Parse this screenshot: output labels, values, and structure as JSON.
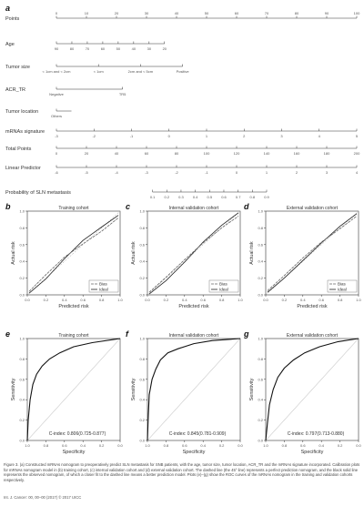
{
  "nomogram": {
    "panel_letter": "a",
    "rows": [
      {
        "label": "Points",
        "ticks": [
          "0",
          "10",
          "20",
          "30",
          "40",
          "50",
          "60",
          "70",
          "80",
          "90",
          "100"
        ]
      },
      {
        "label": "Age",
        "ticks": [
          "90",
          "80",
          "70",
          "60",
          "50",
          "40",
          "30",
          "20"
        ]
      },
      {
        "label": "Tumor size",
        "ticks": [
          "< 1cm and < 2cm",
          "< 1cm",
          "2cm and < 5cm",
          "Positive"
        ]
      },
      {
        "label": "ACR_TR",
        "ticks": [
          "Negative",
          "TR5"
        ]
      },
      {
        "label": "Tumor location",
        "ticks": [
          "Others"
        ]
      },
      {
        "label": "mRNAs signature",
        "ticks": [
          "-3",
          "-2",
          "-1",
          "0",
          "1",
          "2",
          "3",
          "4",
          "5"
        ]
      },
      {
        "label": "Total Points",
        "ticks": [
          "0",
          "20",
          "40",
          "60",
          "80",
          "100",
          "120",
          "140",
          "160",
          "180",
          "200"
        ]
      },
      {
        "label": "Linear Predictor",
        "ticks": [
          "-6",
          "-5",
          "-4",
          "-3",
          "-2",
          "-1",
          "0",
          "1",
          "2",
          "3",
          "4"
        ]
      },
      {
        "label": "Probability of SLN metastasis",
        "ticks": [
          "0.1",
          "0.2",
          "0.3",
          "0.4",
          "0.5",
          "0.6",
          "0.7",
          "0.8",
          "0.9"
        ]
      }
    ]
  },
  "calibration": [
    {
      "letter": "b",
      "title": "Training cohort",
      "xlabel": "Predicted risk",
      "ylabel": "Actual risk",
      "ticks": [
        "0.0",
        "0.2",
        "0.4",
        "0.6",
        "0.8",
        "1.0"
      ],
      "legend": [
        "Bias",
        "Ideal"
      ]
    },
    {
      "letter": "c",
      "title": "Internal validation cohort",
      "xlabel": "Predicted risk",
      "ylabel": "Actual risk",
      "ticks": [
        "0.0",
        "0.2",
        "0.4",
        "0.6",
        "0.8",
        "1.0"
      ],
      "legend": [
        "Bias",
        "Ideal"
      ]
    },
    {
      "letter": "d",
      "title": "External validation cohort",
      "xlabel": "Predicted risk",
      "ylabel": "Actual risk",
      "ticks": [
        "0.0",
        "0.2",
        "0.4",
        "0.6",
        "0.8",
        "1.0"
      ],
      "legend": [
        "Bias",
        "Ideal"
      ]
    }
  ],
  "roc": [
    {
      "letter": "e",
      "title": "Training cohort",
      "xlabel": "Specificity",
      "ylabel": "Sensitivity",
      "ticks": [
        "1.0",
        "0.8",
        "0.6",
        "0.4",
        "0.2",
        "0.0"
      ],
      "yticks": [
        "0.0",
        "0.2",
        "0.4",
        "0.6",
        "0.8",
        "1.0"
      ],
      "cindex": "C-index: 0.806(0.725-0.877)"
    },
    {
      "letter": "f",
      "title": "Internal validation cohort",
      "xlabel": "Specificity",
      "ylabel": "Sensitivity",
      "ticks": [
        "1.0",
        "0.8",
        "0.6",
        "0.4",
        "0.2",
        "0.0"
      ],
      "yticks": [
        "0.0",
        "0.2",
        "0.4",
        "0.6",
        "0.8",
        "1.0"
      ],
      "cindex": "C-index: 0.845(0.781-0.909)"
    },
    {
      "letter": "g",
      "title": "External validation cohort",
      "xlabel": "Specificity",
      "ylabel": "Sensitivity",
      "ticks": [
        "1.0",
        "0.8",
        "0.6",
        "0.4",
        "0.2",
        "0.0"
      ],
      "yticks": [
        "0.0",
        "0.2",
        "0.4",
        "0.6",
        "0.8",
        "1.0"
      ],
      "cindex": "C-index: 0.797(0.713-0.880)"
    }
  ],
  "caption": "Figure 3. (a) Constructed mRNAs nomogram to preoperatively predict SLN metastasis for SNB patients, with the age, tumor size, tumor location, ACR_TR and the mRNAs signature incorporated. Calibration plots for mRNAs nomogram model in (b) training cohort, (c) internal validation cohort and (d) external validation cohort. The dashed line (the 45° line) represents a perfect prediction nomogram, and the black solid line represents the observed nomogram, of which a closer fit to the dashed line means a better prediction model. Plots (e)–(g) show the ROC curves of the mRNAs nomogram in the training and validation cohorts respectively.",
  "footer": "Int. J. Cancer: 00, 00–00 (2017) © 2017 UICC"
}
